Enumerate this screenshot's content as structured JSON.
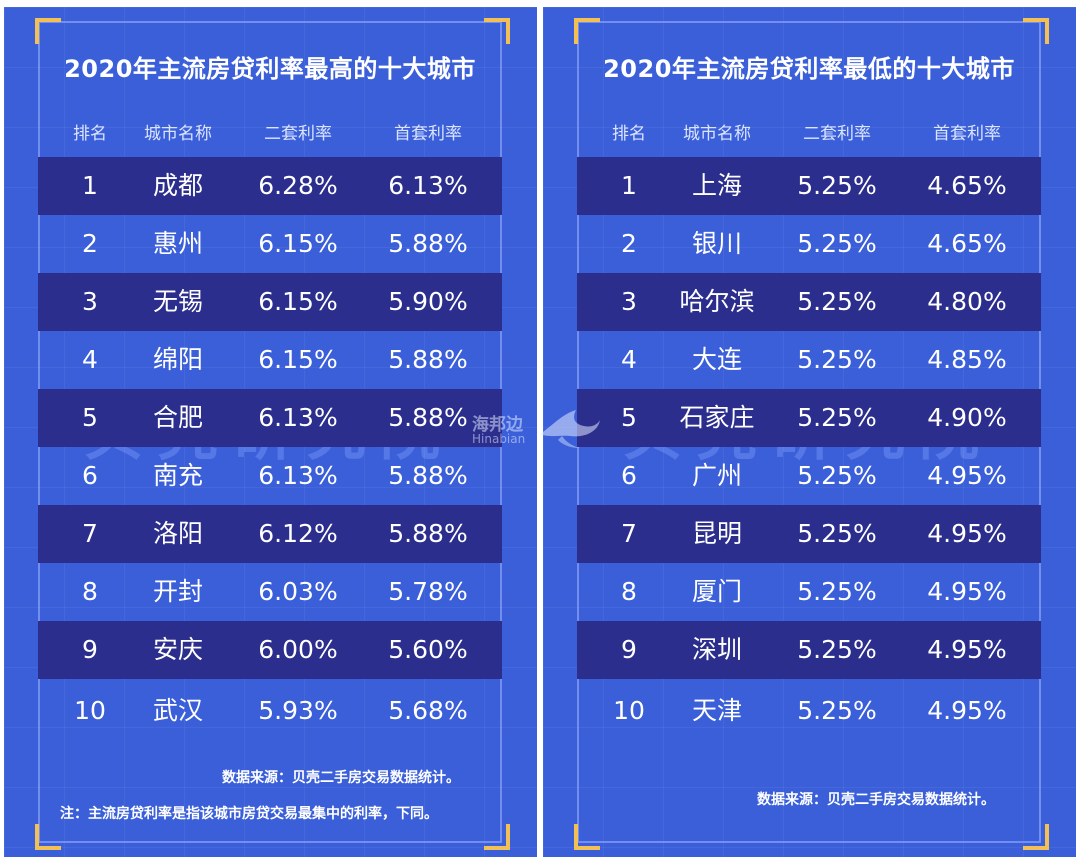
{
  "left": {
    "title": "2020年主流房贷利率最高的十大城市",
    "headers": [
      "排名",
      "城市名称",
      "二套利率",
      "首套利率"
    ],
    "rows": [
      [
        "1",
        "成都",
        "6.28%",
        "6.13%"
      ],
      [
        "2",
        "惠州",
        "6.15%",
        "5.88%"
      ],
      [
        "3",
        "无锡",
        "6.15%",
        "5.90%"
      ],
      [
        "4",
        "绵阳",
        "6.15%",
        "5.88%"
      ],
      [
        "5",
        "合肥",
        "6.13%",
        "5.88%"
      ],
      [
        "6",
        "南充",
        "6.13%",
        "5.88%"
      ],
      [
        "7",
        "洛阳",
        "6.12%",
        "5.88%"
      ],
      [
        "8",
        "开封",
        "6.03%",
        "5.78%"
      ],
      [
        "9",
        "安庆",
        "6.00%",
        "5.60%"
      ],
      [
        "10",
        "武汉",
        "5.93%",
        "5.68%"
      ]
    ],
    "source": "数据来源：贝壳二手房交易数据统计。",
    "footnote": "注：主流房贷利率是指该城市房贷交易最集中的利率，下同。",
    "watermark": "贝壳研究院"
  },
  "right": {
    "title": "2020年主流房贷利率最低的十大城市",
    "headers": [
      "排名",
      "城市名称",
      "二套利率",
      "首套利率"
    ],
    "rows": [
      [
        "1",
        "上海",
        "5.25%",
        "4.65%"
      ],
      [
        "2",
        "银川",
        "5.25%",
        "4.65%"
      ],
      [
        "3",
        "哈尔滨",
        "5.25%",
        "4.80%"
      ],
      [
        "4",
        "大连",
        "5.25%",
        "4.85%"
      ],
      [
        "5",
        "石家庄",
        "5.25%",
        "4.90%"
      ],
      [
        "6",
        "广州",
        "5.25%",
        "4.95%"
      ],
      [
        "7",
        "昆明",
        "5.25%",
        "4.95%"
      ],
      [
        "8",
        "厦门",
        "5.25%",
        "4.95%"
      ],
      [
        "9",
        "深圳",
        "5.25%",
        "4.95%"
      ],
      [
        "10",
        "天津",
        "5.25%",
        "4.95%"
      ]
    ],
    "source": "数据来源：贝壳二手房交易数据统计。",
    "watermark": "贝壳研究院"
  },
  "logo": {
    "name_cn": "海邦边",
    "name_en": "Hinabian",
    "icon": "bird-icon"
  },
  "colors": {
    "background": "#3a5fd9",
    "dark_row": "#2b2e8c",
    "corner": "#f2c055",
    "text": "#ffffff"
  }
}
